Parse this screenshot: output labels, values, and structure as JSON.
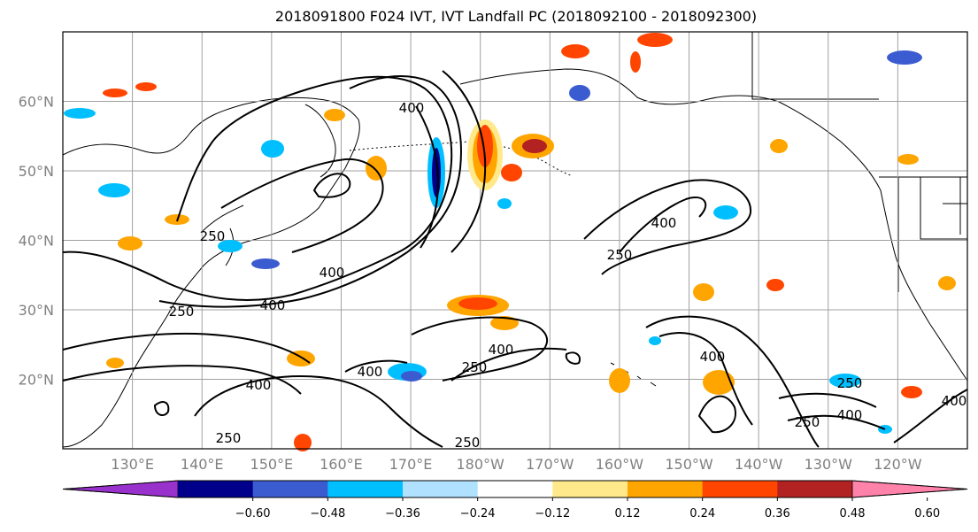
{
  "title": "2018091800 F024 IVT, IVT Landfall PC (2018092100 - 2018092300)",
  "map": {
    "lon_labels": [
      "130°E",
      "140°E",
      "150°E",
      "160°E",
      "170°E",
      "180°W",
      "170°W",
      "160°W",
      "150°W",
      "140°W",
      "130°W",
      "120°W"
    ],
    "lat_labels": [
      "20°N",
      "30°N",
      "40°N",
      "50°N",
      "60°N"
    ],
    "lon_values": [
      130,
      140,
      150,
      160,
      170,
      180,
      190,
      200,
      210,
      220,
      230,
      240
    ],
    "lat_values": [
      20,
      30,
      40,
      50,
      60
    ],
    "lon_range": [
      120,
      250
    ],
    "lat_range": [
      10,
      70
    ],
    "grid": true,
    "land_color": "#ffffff",
    "coast_color": "#000000"
  },
  "ivt_contours": {
    "units_note": "IVT contour levels",
    "levels": [
      250,
      400
    ],
    "label_strings": [
      "400",
      "400",
      "400",
      "250",
      "250",
      "400",
      "400",
      "250",
      "400",
      "250",
      "400",
      "250",
      "250",
      "400",
      "400",
      "250",
      "400",
      "250"
    ]
  },
  "colorbar": {
    "orientation": "horizontal",
    "extend": "both",
    "ticks": [
      "−0.60",
      "−0.48",
      "−0.36",
      "−0.24",
      "−0.12",
      "0.12",
      "0.24",
      "0.36",
      "0.48",
      "0.60"
    ],
    "bins": [
      {
        "color": "#9932cc"
      },
      {
        "color": "#00008b"
      },
      {
        "color": "#3b5bd1"
      },
      {
        "color": "#00bfff"
      },
      {
        "color": "#b0e2ff"
      },
      {
        "color": "#ffffff"
      },
      {
        "color": "#ffe98a"
      },
      {
        "color": "#ffa500"
      },
      {
        "color": "#ff4500"
      },
      {
        "color": "#b22222"
      },
      {
        "color": "#ff82ab"
      }
    ]
  }
}
